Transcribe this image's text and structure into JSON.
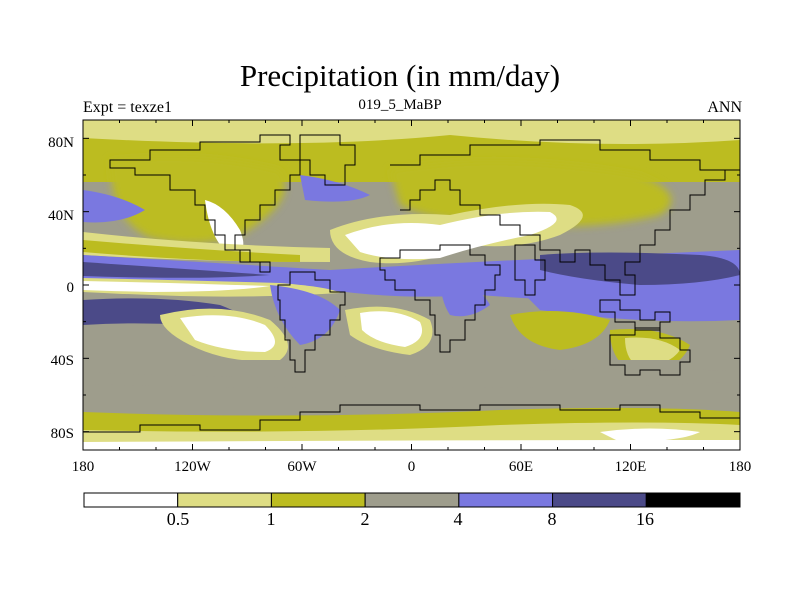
{
  "chart_data": {
    "type": "contour-map",
    "title": "Precipitation (in mm/day)",
    "left_string": "Expt = texze1",
    "center_string": "019_5_MaBP",
    "right_string": "ANN",
    "x_ticks": [
      "180",
      "120W",
      "60W",
      "0",
      "60E",
      "120E",
      "180"
    ],
    "y_ticks": [
      "80N",
      "40N",
      "0",
      "40S",
      "80S"
    ],
    "lon_range": [
      -180,
      180
    ],
    "lat_range": [
      -90,
      90
    ],
    "colorbar": {
      "levels": [
        "0.5",
        "1",
        "2",
        "4",
        "8",
        "16"
      ],
      "colors": [
        "#ffffff",
        "#dedd84",
        "#bcbc20",
        "#9e9d8c",
        "#7a78e0",
        "#4b4a88",
        "#000000"
      ]
    }
  }
}
